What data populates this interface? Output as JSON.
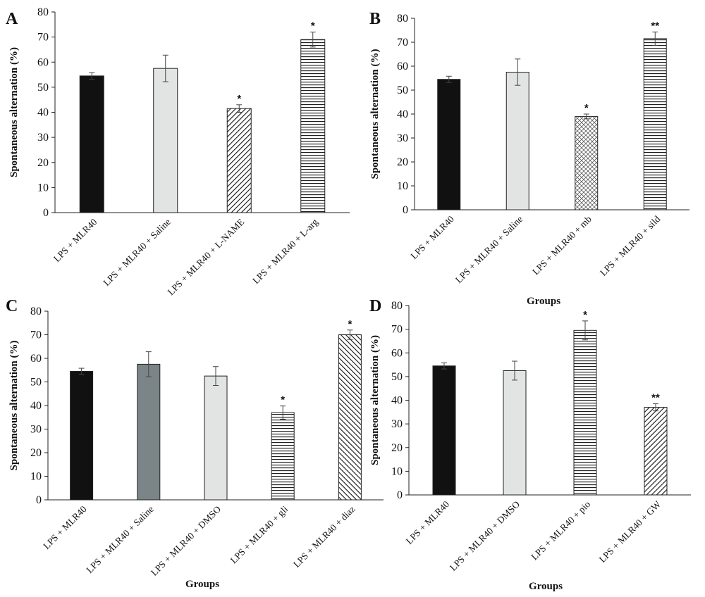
{
  "chart_data": [
    {
      "panel": "A",
      "type": "bar",
      "xlabel": "",
      "ylabel": "Spontaneous alternation (%)",
      "ylim": [
        0,
        80
      ],
      "yticks": [
        0,
        10,
        20,
        30,
        40,
        50,
        60,
        70,
        80
      ],
      "categories": [
        "LPS + MLR40",
        "LPS + MLR40 + Saline",
        "LPS + MLR40 + L-NAME",
        "LPS + MLR40 + L-arg"
      ],
      "values": [
        54.5,
        57.5,
        41.5,
        69.0
      ],
      "errors": [
        1.3,
        5.3,
        1.5,
        3.0
      ],
      "significance": [
        "",
        "",
        "*",
        "*"
      ],
      "patterns": [
        "black",
        "lightgray",
        "diag-down",
        "horizontal"
      ]
    },
    {
      "panel": "B",
      "type": "bar",
      "xlabel": "Groups",
      "ylabel": "Spontaneous alternation (%)",
      "ylim": [
        0,
        80
      ],
      "yticks": [
        0,
        10,
        20,
        30,
        40,
        50,
        60,
        70,
        80
      ],
      "categories": [
        "LPS + MLR40",
        "LPS + MLR40 + Saline",
        "LPS + MLR40 + mb",
        "LPS + MLR40 + sild"
      ],
      "values": [
        54.5,
        57.5,
        39.0,
        71.5
      ],
      "errors": [
        1.3,
        5.5,
        1.0,
        2.8
      ],
      "significance": [
        "",
        "",
        "*",
        "**"
      ],
      "patterns": [
        "black",
        "lightgray",
        "diamond",
        "horizontal"
      ]
    },
    {
      "panel": "C",
      "type": "bar",
      "xlabel": "Groups",
      "ylabel": "Spontaneous alternation (%)",
      "ylim": [
        0,
        80
      ],
      "yticks": [
        0,
        10,
        20,
        30,
        40,
        50,
        60,
        70,
        80
      ],
      "categories": [
        "LPS + MLR40",
        "LPS + MLR40 + Saline",
        "LPS + MLR40 + DMSO",
        "LPS + MLR40 + gli",
        "LPS + MLR40 + diaz"
      ],
      "values": [
        54.5,
        57.5,
        52.5,
        37.0,
        70.0
      ],
      "errors": [
        1.3,
        5.3,
        4.0,
        2.8,
        2.0
      ],
      "significance": [
        "",
        "",
        "",
        "*",
        "*"
      ],
      "patterns": [
        "black",
        "darkgray",
        "lightgray",
        "horizontal",
        "diag-up"
      ]
    },
    {
      "panel": "D",
      "type": "bar",
      "xlabel": "Groups",
      "ylabel": "Spontaneous alternation (%)",
      "ylim": [
        0,
        80
      ],
      "yticks": [
        0,
        10,
        20,
        30,
        40,
        50,
        60,
        70,
        80
      ],
      "categories": [
        "LPS + MLR40",
        "LPS + MLR40 + DMSO",
        "LPS + MLR40 + pio",
        "LPS + MLR40 + GW"
      ],
      "values": [
        54.5,
        52.5,
        69.5,
        37.0
      ],
      "errors": [
        1.3,
        4.0,
        4.0,
        1.5
      ],
      "significance": [
        "",
        "",
        "*",
        "**"
      ],
      "patterns": [
        "black",
        "lightgray",
        "horizontal",
        "diag-down"
      ]
    }
  ]
}
